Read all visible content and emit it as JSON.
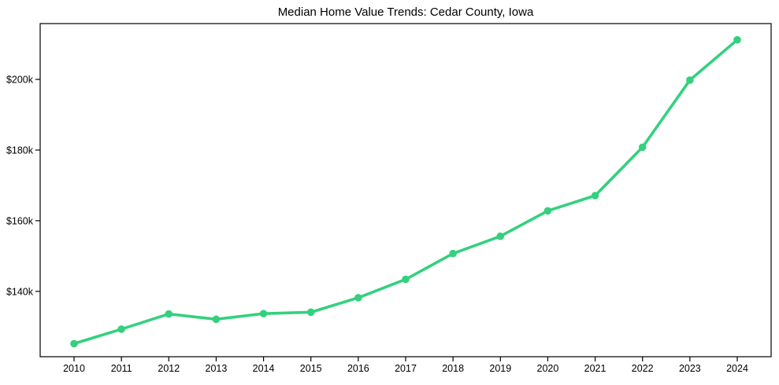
{
  "chart_data": {
    "type": "line",
    "title": "Median Home Value Trends: Cedar County, Iowa",
    "xlabel": "",
    "ylabel": "",
    "x": [
      2010,
      2011,
      2012,
      2013,
      2014,
      2015,
      2016,
      2017,
      2018,
      2019,
      2020,
      2021,
      2022,
      2023,
      2024
    ],
    "x_tick_labels": [
      "2010",
      "2011",
      "2012",
      "2013",
      "2014",
      "2015",
      "2016",
      "2017",
      "2018",
      "2019",
      "2020",
      "2021",
      "2022",
      "2023",
      "2024"
    ],
    "series": [
      {
        "name": "Median Home Value",
        "values": [
          125200,
          129300,
          133600,
          132100,
          133700,
          134100,
          138200,
          143400,
          150700,
          155600,
          162800,
          167100,
          180800,
          199800,
          211200
        ]
      }
    ],
    "y_ticks": [
      140000,
      160000,
      180000,
      200000
    ],
    "y_tick_labels": [
      "$140k",
      "$160k",
      "$180k",
      "$200k"
    ],
    "ylim": [
      121500,
      215800
    ],
    "grid": false,
    "legend_position": "none",
    "marker": "circle",
    "line_color": "#33d17e",
    "axis_color": "#000000",
    "text_color": "#000000",
    "background_color": "#ffffff"
  }
}
